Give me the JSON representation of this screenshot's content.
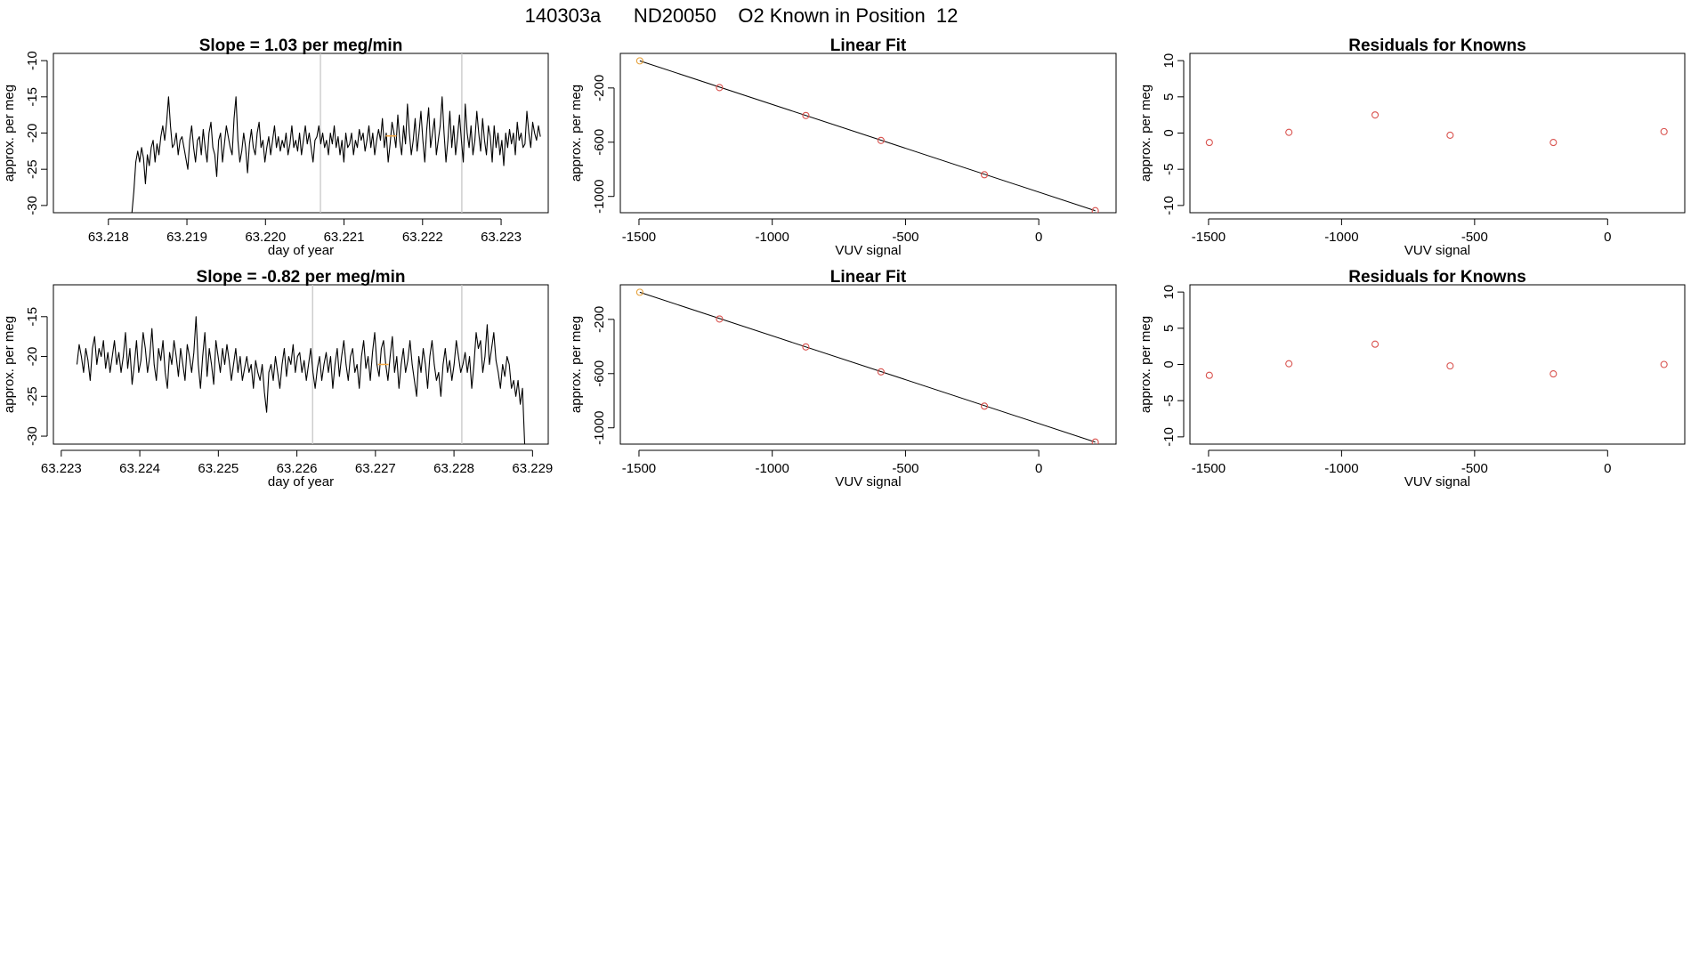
{
  "page_title": "140303a      ND20050    O2 Known in Position  12",
  "chart_data": [
    {
      "type": "line",
      "title": "Slope =  1.03  per meg/min",
      "xlabel": "day of year",
      "ylabel": "approx. per meg",
      "xlim": [
        63.2173,
        63.2236
      ],
      "ylim": [
        -31,
        -9
      ],
      "xticks": [
        "63.218",
        "63.219",
        "63.220",
        "63.221",
        "63.222",
        "63.223"
      ],
      "yticks": [
        "-10",
        "-15",
        "-20",
        "-25",
        "-30"
      ],
      "vlines": [
        63.2207,
        63.2225
      ],
      "highlight": {
        "x": 63.2216,
        "y": -20.4,
        "color": "#f4a742"
      },
      "series": [
        {
          "color": "#000000",
          "x_start": 63.2183,
          "x_end": 63.2235,
          "values": [
            -31,
            -28,
            -24,
            -22.5,
            -24,
            -22,
            -23.5,
            -27,
            -23,
            -24.5,
            -22,
            -21,
            -24,
            -21.5,
            -23,
            -20.5,
            -19,
            -21,
            -18.5,
            -15,
            -19,
            -22,
            -21.5,
            -20,
            -23,
            -21,
            -20.5,
            -22,
            -23.5,
            -25,
            -21,
            -19,
            -22,
            -24,
            -21,
            -20.5,
            -23,
            -19.5,
            -22,
            -24,
            -20,
            -18.5,
            -22,
            -23,
            -26,
            -21,
            -20,
            -24,
            -21.5,
            -19,
            -20.5,
            -22,
            -23,
            -18,
            -15,
            -21,
            -24,
            -22.5,
            -20,
            -22,
            -25.5,
            -21.5,
            -19.5,
            -22,
            -23,
            -20,
            -18.5,
            -22,
            -21,
            -24,
            -22,
            -20.5,
            -23,
            -21,
            -19,
            -22,
            -20.5,
            -22.5,
            -21,
            -22,
            -20,
            -23,
            -21.5,
            -19,
            -22,
            -21,
            -22.5,
            -20,
            -23,
            -21,
            -19,
            -21.5,
            -20,
            -22,
            -24,
            -21,
            -20.5,
            -19,
            -21.5,
            -20,
            -22,
            -21,
            -23,
            -20,
            -21.5,
            -19,
            -22,
            -20.5,
            -23,
            -21,
            -24,
            -20,
            -22,
            -21.5,
            -20,
            -23,
            -21,
            -22,
            -19.5,
            -21,
            -20,
            -22.5,
            -21,
            -19,
            -22,
            -20,
            -23,
            -21,
            -19.5,
            -21,
            -18,
            -22,
            -20,
            -24,
            -21.5,
            -18.5,
            -20,
            -22,
            -17.5,
            -21,
            -23,
            -19,
            -21.5,
            -16,
            -20,
            -23,
            -21,
            -18,
            -22.5,
            -20,
            -17,
            -21,
            -24,
            -19.5,
            -16.5,
            -22,
            -20,
            -18,
            -23,
            -21,
            -19,
            -15,
            -20,
            -24,
            -21,
            -17,
            -22,
            -19,
            -23,
            -20.5,
            -17.5,
            -21,
            -24,
            -16,
            -20,
            -22,
            -19,
            -23,
            -21,
            -17,
            -20,
            -22.5,
            -18,
            -21,
            -23,
            -19,
            -20.5,
            -24,
            -19,
            -22,
            -20,
            -23,
            -21,
            -24.5,
            -20,
            -22,
            -19.5,
            -21.5,
            -20,
            -23,
            -18.5,
            -21,
            -20,
            -22,
            -21.5,
            -17,
            -20,
            -22,
            -18.5,
            -20,
            -21,
            -19,
            -20.5
          ]
        }
      ]
    },
    {
      "type": "scatter",
      "title": "Linear Fit",
      "xlabel": "VUV signal",
      "ylabel": "approx. per meg",
      "xlim": [
        -1570,
        290
      ],
      "ylim": [
        -1120,
        55
      ],
      "xticks": [
        "-1500",
        "-1000",
        "-500",
        "0"
      ],
      "yticks": [
        "-200",
        "-600",
        "-1000"
      ],
      "points": [
        [
          -1497,
          0
        ],
        [
          -1198,
          -197
        ],
        [
          -874,
          -403
        ],
        [
          -592,
          -587
        ],
        [
          -204,
          -840
        ],
        [
          212,
          -1105
        ]
      ],
      "highlight_index": 0,
      "fit_line": [
        [
          -1497,
          0
        ],
        [
          212,
          -1105
        ]
      ]
    },
    {
      "type": "scatter",
      "title": "Residuals for Knowns",
      "xlabel": "VUV signal",
      "ylabel": "approx. per meg",
      "xlim": [
        -1570,
        290
      ],
      "ylim": [
        -11,
        11
      ],
      "xticks": [
        "-1500",
        "-1000",
        "-500",
        "0"
      ],
      "yticks": [
        "-10",
        "-5",
        "0",
        "5",
        "10"
      ],
      "points": [
        [
          -1497,
          -1.3
        ],
        [
          -1198,
          0.1
        ],
        [
          -874,
          2.5
        ],
        [
          -592,
          -0.3
        ],
        [
          -204,
          -1.3
        ],
        [
          212,
          0.2
        ]
      ]
    },
    {
      "type": "line",
      "title": "Slope =  -0.82  per meg/min",
      "xlabel": "day of year",
      "ylabel": "approx. per meg",
      "xlim": [
        63.2229,
        63.2292
      ],
      "ylim": [
        -31,
        -11
      ],
      "xticks": [
        "63.223",
        "63.224",
        "63.225",
        "63.226",
        "63.227",
        "63.228",
        "63.229"
      ],
      "yticks": [
        "-15",
        "-20",
        "-25",
        "-30"
      ],
      "vlines": [
        63.2262,
        63.2281
      ],
      "highlight": {
        "x": 63.2271,
        "y": -21,
        "color": "#f4a742"
      },
      "series": [
        {
          "color": "#000000",
          "x_start": 63.2232,
          "x_end": 63.2289,
          "values": [
            -21,
            -18.5,
            -20,
            -22,
            -19,
            -20.5,
            -23,
            -19,
            -17.5,
            -21,
            -19,
            -20,
            -18,
            -21.5,
            -19.5,
            -22,
            -20,
            -18,
            -21,
            -19.5,
            -22,
            -20,
            -17,
            -21.5,
            -19,
            -23.5,
            -21,
            -18,
            -22,
            -20.5,
            -17,
            -19,
            -22,
            -20,
            -16.5,
            -21,
            -23,
            -19,
            -20.5,
            -18,
            -22,
            -24,
            -19.5,
            -21,
            -18,
            -20,
            -22.5,
            -19,
            -21,
            -23,
            -18.5,
            -20,
            -22,
            -19.5,
            -15,
            -21,
            -24,
            -20,
            -17,
            -22.5,
            -19,
            -21,
            -23.5,
            -18,
            -20,
            -22,
            -19,
            -21,
            -18.5,
            -20.5,
            -23,
            -21,
            -19,
            -22,
            -20,
            -23,
            -21.5,
            -20,
            -22,
            -21,
            -24,
            -20.5,
            -22,
            -23,
            -21,
            -24.5,
            -27,
            -22,
            -21,
            -23,
            -20,
            -22,
            -24,
            -21,
            -19,
            -22.5,
            -20,
            -21,
            -18.5,
            -22,
            -20,
            -19.5,
            -22,
            -20.5,
            -23,
            -21,
            -19,
            -22,
            -24,
            -21.5,
            -20,
            -23,
            -21,
            -19.5,
            -22,
            -20,
            -24,
            -21,
            -19,
            -22.5,
            -20,
            -18,
            -21,
            -23,
            -20,
            -19,
            -22,
            -21,
            -24,
            -20,
            -18,
            -21.5,
            -20,
            -23,
            -19.5,
            -17,
            -21,
            -22.5,
            -19,
            -18,
            -21,
            -23,
            -20,
            -17.5,
            -22,
            -20,
            -24,
            -21,
            -19,
            -22,
            -20.5,
            -18,
            -21,
            -23,
            -25,
            -20,
            -22,
            -19,
            -21,
            -24,
            -20,
            -18,
            -21,
            -23,
            -22,
            -25,
            -21,
            -19,
            -22,
            -20.5,
            -23,
            -21,
            -18,
            -20,
            -22,
            -21,
            -19.5,
            -22,
            -20,
            -24,
            -21,
            -17,
            -19,
            -18,
            -22,
            -20,
            -16,
            -21,
            -19,
            -17,
            -20.5,
            -22,
            -24,
            -21,
            -22.5,
            -20,
            -21,
            -24,
            -23,
            -25,
            -23,
            -26,
            -24,
            -31
          ]
        }
      ]
    },
    {
      "type": "scatter",
      "title": "Linear Fit",
      "xlabel": "VUV signal",
      "ylabel": "approx. per meg",
      "xlim": [
        -1570,
        290
      ],
      "ylim": [
        -1120,
        55
      ],
      "xticks": [
        "-1500",
        "-1000",
        "-500",
        "0"
      ],
      "yticks": [
        "-200",
        "-600",
        "-1000"
      ],
      "points": [
        [
          -1497,
          0
        ],
        [
          -1198,
          -197
        ],
        [
          -874,
          -403
        ],
        [
          -592,
          -587
        ],
        [
          -204,
          -840
        ],
        [
          212,
          -1105
        ]
      ],
      "highlight_index": 0,
      "fit_line": [
        [
          -1497,
          0
        ],
        [
          212,
          -1105
        ]
      ]
    },
    {
      "type": "scatter",
      "title": "Residuals for Knowns",
      "xlabel": "VUV signal",
      "ylabel": "approx. per meg",
      "xlim": [
        -1570,
        290
      ],
      "ylim": [
        -11,
        11
      ],
      "xticks": [
        "-1500",
        "-1000",
        "-500",
        "0"
      ],
      "yticks": [
        "-10",
        "-5",
        "0",
        "5",
        "10"
      ],
      "points": [
        [
          -1497,
          -1.5
        ],
        [
          -1198,
          0.1
        ],
        [
          -874,
          2.8
        ],
        [
          -592,
          -0.2
        ],
        [
          -204,
          -1.3
        ],
        [
          212,
          0.0
        ]
      ]
    }
  ]
}
